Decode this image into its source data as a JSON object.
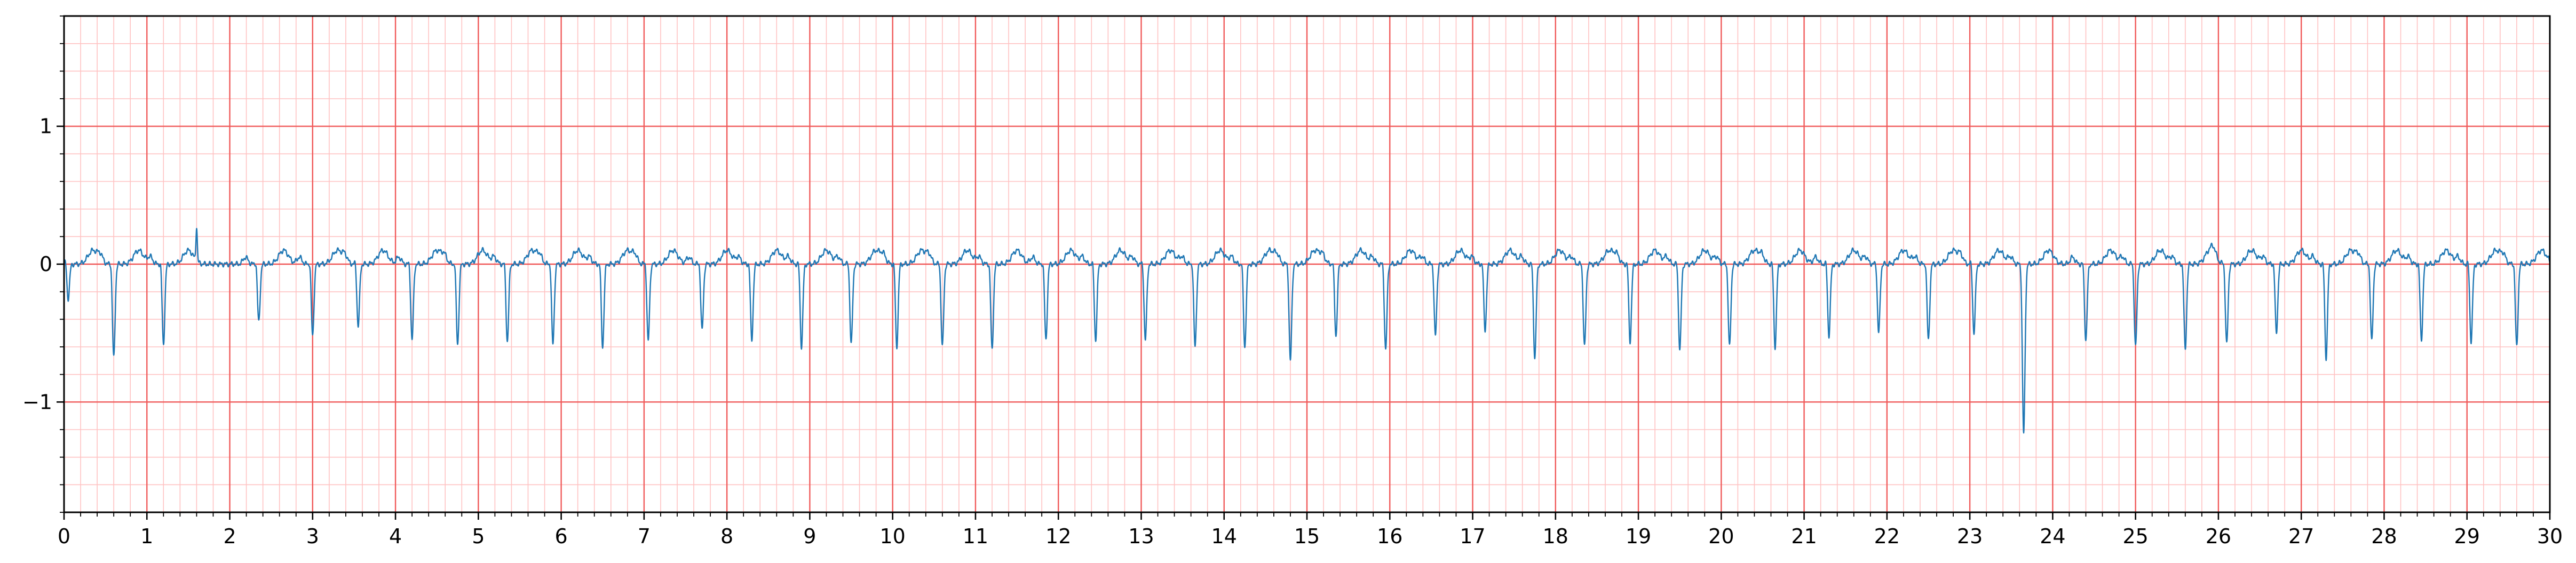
{
  "chart_data": {
    "type": "line",
    "title": "",
    "xlabel": "",
    "ylabel": "",
    "xlim": [
      0,
      30
    ],
    "ylim": [
      -1.8,
      1.8
    ],
    "grid": {
      "major_x_step": 1,
      "minor_x_step": 0.2,
      "major_y_step": 1,
      "minor_y_step": 0.2,
      "major_color": "#f05a5a",
      "minor_color": "#ffc2c2"
    },
    "xticks": [
      "0",
      "1",
      "2",
      "3",
      "4",
      "5",
      "6",
      "7",
      "8",
      "9",
      "10",
      "11",
      "12",
      "13",
      "14",
      "15",
      "16",
      "17",
      "18",
      "19",
      "20",
      "21",
      "22",
      "23",
      "24",
      "25",
      "26",
      "27",
      "28",
      "29",
      "30"
    ],
    "yticks": [
      {
        "value": -1,
        "label": "−1"
      },
      {
        "value": 0,
        "label": "0"
      },
      {
        "value": 1,
        "label": "1"
      }
    ],
    "series": [
      {
        "color": "#1f77b4",
        "beat_times": [
          0.05,
          0.6,
          1.2,
          1.6,
          2.35,
          3.0,
          3.55,
          4.2,
          4.75,
          5.35,
          5.9,
          6.5,
          7.05,
          7.7,
          8.3,
          8.9,
          9.5,
          10.05,
          10.6,
          11.2,
          11.85,
          12.45,
          13.05,
          13.65,
          14.25,
          14.8,
          15.35,
          15.95,
          16.55,
          17.15,
          17.75,
          18.35,
          18.9,
          19.5,
          20.1,
          20.65,
          21.3,
          21.9,
          22.5,
          23.05,
          23.65,
          24.4,
          25.0,
          25.6,
          26.1,
          26.7,
          27.3,
          27.85,
          28.45,
          29.05,
          29.6
        ],
        "beat_depths": [
          -0.25,
          -0.68,
          -0.58,
          0.25,
          -0.42,
          -0.52,
          -0.45,
          -0.55,
          -0.58,
          -0.56,
          -0.58,
          -0.6,
          -0.56,
          -0.48,
          -0.55,
          -0.6,
          -0.58,
          -0.6,
          -0.6,
          -0.62,
          -0.55,
          -0.55,
          -0.55,
          -0.6,
          -0.6,
          -0.7,
          -0.52,
          -0.62,
          -0.52,
          -0.48,
          -0.68,
          -0.6,
          -0.56,
          -0.62,
          -0.6,
          -0.6,
          -0.52,
          -0.5,
          -0.55,
          -0.5,
          -1.23,
          -0.55,
          -0.6,
          -0.62,
          -0.58,
          -0.5,
          -0.68,
          -0.56,
          -0.55,
          -0.56,
          -0.6
        ],
        "t_wave_peak_max": 0.35,
        "t_wave_peak_time": 23.85
      }
    ]
  }
}
